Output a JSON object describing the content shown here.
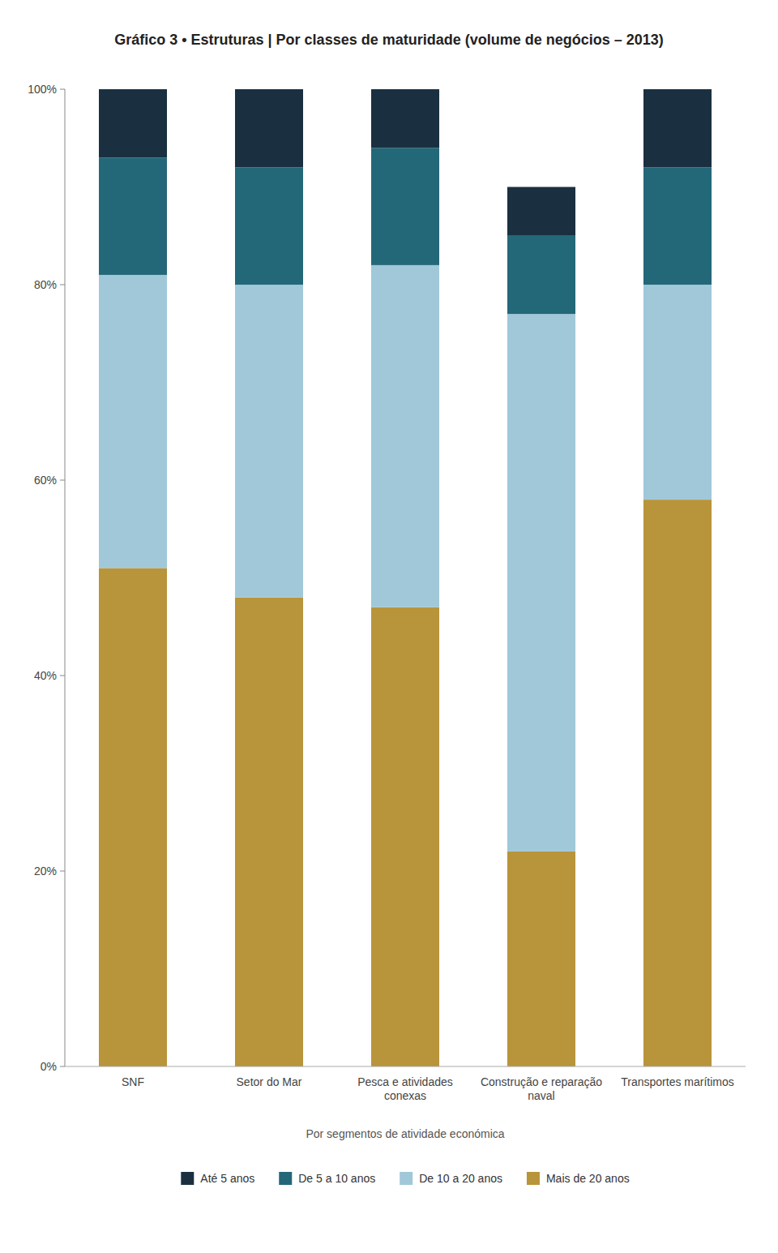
{
  "chart_data": {
    "type": "bar",
    "stacked": true,
    "title": "Gráfico 3 • Estruturas | Por classes de maturidade (volume de negócios – 2013)",
    "xlabel": "Por segmentos de atividade económica",
    "categories": [
      "SNF",
      "Setor do Mar",
      "Pesca e atividades\nconexas",
      "Construção e reparação\nnaval",
      "Transportes marítimos"
    ],
    "series": [
      {
        "name": "Mais de 20 anos",
        "color": "#b8943a",
        "values": [
          51,
          48,
          47,
          22,
          58
        ]
      },
      {
        "name": "De 10 a 20 anos",
        "color": "#a0c8d8",
        "values": [
          30,
          32,
          35,
          55,
          22
        ]
      },
      {
        "name": "De 5 a 10 anos",
        "color": "#236878",
        "values": [
          12,
          12,
          12,
          8,
          12
        ]
      },
      {
        "name": "Até 5 anos",
        "color": "#1a3040",
        "values": [
          7,
          8,
          6,
          5,
          8
        ]
      }
    ],
    "ylim": [
      0,
      100
    ],
    "yticks": [
      {
        "value": 0,
        "label": "0%"
      },
      {
        "value": 20,
        "label": "20%"
      },
      {
        "value": 40,
        "label": "40%"
      },
      {
        "value": 60,
        "label": "60%"
      },
      {
        "value": 80,
        "label": "80%"
      },
      {
        "value": 100,
        "label": "100%"
      }
    ],
    "grid": false,
    "legend": "bottom"
  }
}
